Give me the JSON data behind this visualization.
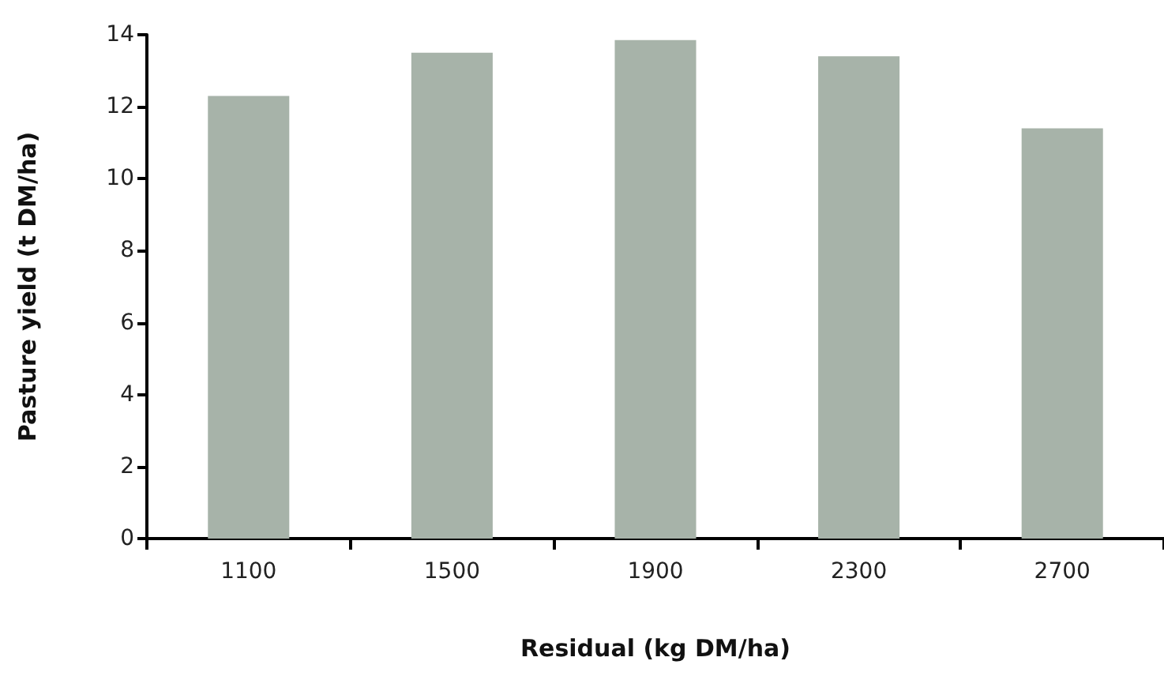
{
  "chart_data": {
    "type": "bar",
    "xlabel": "Residual (kg DM/ha)",
    "ylabel": "Pasture yield (t DM/ha)",
    "categories": [
      "1100",
      "1500",
      "1900",
      "2300",
      "2700"
    ],
    "values": [
      12.3,
      13.5,
      13.85,
      13.4,
      11.4
    ],
    "color": "#a7b3a9",
    "ylim": [
      0,
      14
    ],
    "yticks": [
      0,
      2,
      4,
      6,
      8,
      10,
      12,
      14
    ],
    "grid": false
  }
}
